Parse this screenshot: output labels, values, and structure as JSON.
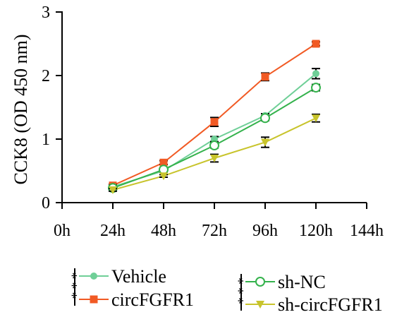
{
  "chart_data": {
    "type": "line",
    "ylabel": "CCK8 (OD 450 nm)",
    "xlabel": "",
    "x": [
      24,
      48,
      72,
      96,
      120
    ],
    "xticks": [
      0,
      24,
      48,
      72,
      96,
      120,
      144
    ],
    "xtick_labels": [
      "0h",
      "24h",
      "48h",
      "72h",
      "96h",
      "120h",
      "144h"
    ],
    "xlim": [
      0,
      144
    ],
    "yticks": [
      0,
      1,
      2,
      3
    ],
    "ytick_labels": [
      "0",
      "1",
      "2",
      "3"
    ],
    "ylim": [
      0,
      3
    ],
    "grid": false,
    "legend": "bottom",
    "series": [
      {
        "name": "Vehicle",
        "color": "#6fcf97",
        "marker": "circle-filled",
        "values": [
          0.25,
          0.5,
          1.0,
          1.37,
          2.03
        ],
        "errors": [
          0.02,
          0.02,
          0.04,
          0.03,
          0.08
        ]
      },
      {
        "name": "circFGFR1",
        "color": "#f15a24",
        "marker": "square",
        "values": [
          0.27,
          0.63,
          1.27,
          1.98,
          2.5
        ],
        "errors": [
          0.02,
          0.03,
          0.07,
          0.06,
          0.03
        ]
      },
      {
        "name": "sh-NC",
        "color": "#34b24c",
        "marker": "circle-open",
        "values": [
          0.23,
          0.52,
          0.9,
          1.33,
          1.81
        ],
        "errors": [
          0.02,
          0.03,
          0.04,
          0.04,
          0.05
        ]
      },
      {
        "name": "sh-circFGFR1",
        "color": "#c8c42c",
        "marker": "triangle-down",
        "values": [
          0.2,
          0.42,
          0.7,
          0.95,
          1.33
        ],
        "errors": [
          0.02,
          0.02,
          0.06,
          0.08,
          0.06
        ]
      }
    ],
    "significance": [
      "***",
      "***"
    ]
  }
}
